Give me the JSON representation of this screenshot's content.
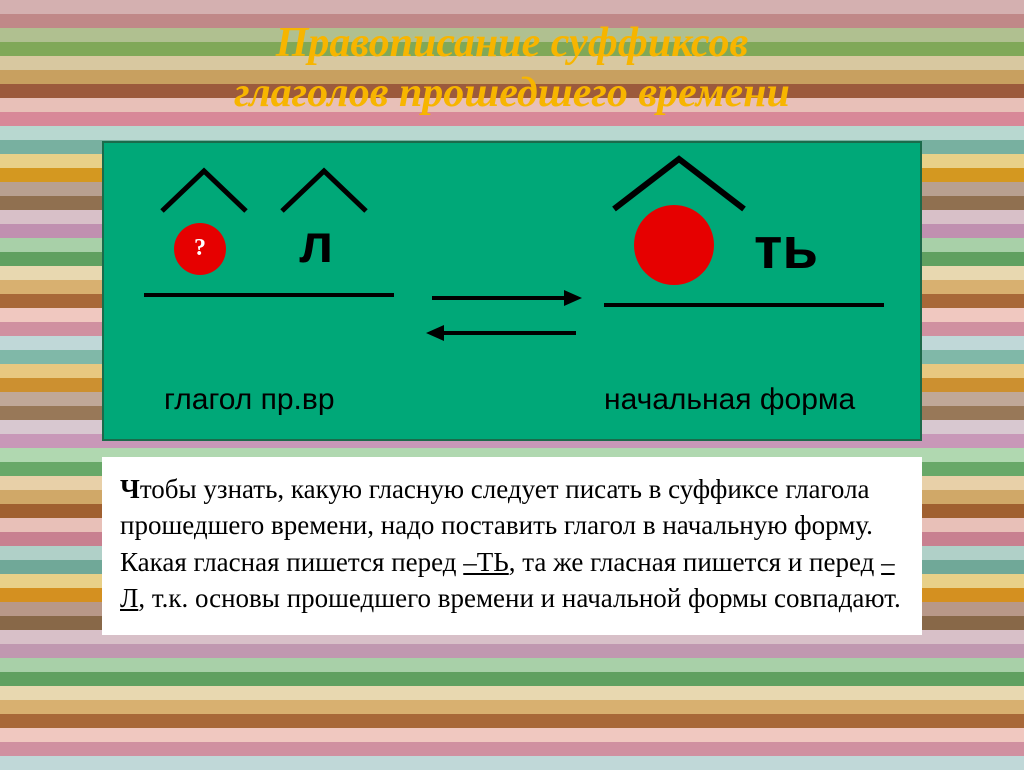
{
  "title": {
    "line1": "Правописание суффиксов",
    "line2": "глаголов прошедшего времени",
    "color": "#f7b500",
    "fontsize": 42
  },
  "diagram": {
    "background": "#00a878",
    "left_label": "глагол пр.вр",
    "right_label": "начальная форма",
    "label_fontsize": 30,
    "qmark": "?",
    "letter_L": "л",
    "letter_TY": "ть",
    "letter_fontsize": 54,
    "circle_color": "#e60000",
    "hat_stroke": "#000000",
    "underline_color": "#000000"
  },
  "rule": {
    "first_letter": "Ч",
    "text_part1": "тобы узнать, какую гласную следует писать в суффиксе глагола прошедшего времени, надо поставить глагол в начальную форму. Какая гласная пишется перед ",
    "u1": "–ТЬ",
    "text_part2": ", та же гласная пишется и перед ",
    "u2": "–Л",
    "text_part3": ", т.к. основы прошедшего времени и начальной формы совпадают.",
    "fontsize": 27
  },
  "stripes": [
    "#d4b0b0",
    "#c08888",
    "#b0c090",
    "#80a858",
    "#d8c8a0",
    "#c8a060",
    "#9c5a3c",
    "#e8c0b8",
    "#d88898",
    "#b8d8d0",
    "#78b0a0",
    "#e8d088",
    "#d49820",
    "#b8a090",
    "#907050",
    "#d8c0c8",
    "#c090b0",
    "#a8d0a8",
    "#60a060",
    "#e8d8b0",
    "#d8b070",
    "#a86838",
    "#f0c8c0",
    "#d090a0",
    "#c0d8d8",
    "#80b8a8",
    "#e8c880",
    "#cc9030",
    "#c0a898",
    "#987858",
    "#d8c8d0",
    "#c898b8",
    "#b0d8b0",
    "#68a868",
    "#e8d0a8",
    "#d0a868",
    "#a06030",
    "#e8c0b8",
    "#c88090",
    "#b0d0c8",
    "#70a898",
    "#e8d088",
    "#d49020",
    "#b89888",
    "#886848",
    "#d8c0c8",
    "#c098b0",
    "#a8d0a8",
    "#60a060",
    "#e8d8b0",
    "#d8b070",
    "#a86838",
    "#f0c8c0",
    "#d090a0",
    "#c0d8d8"
  ]
}
